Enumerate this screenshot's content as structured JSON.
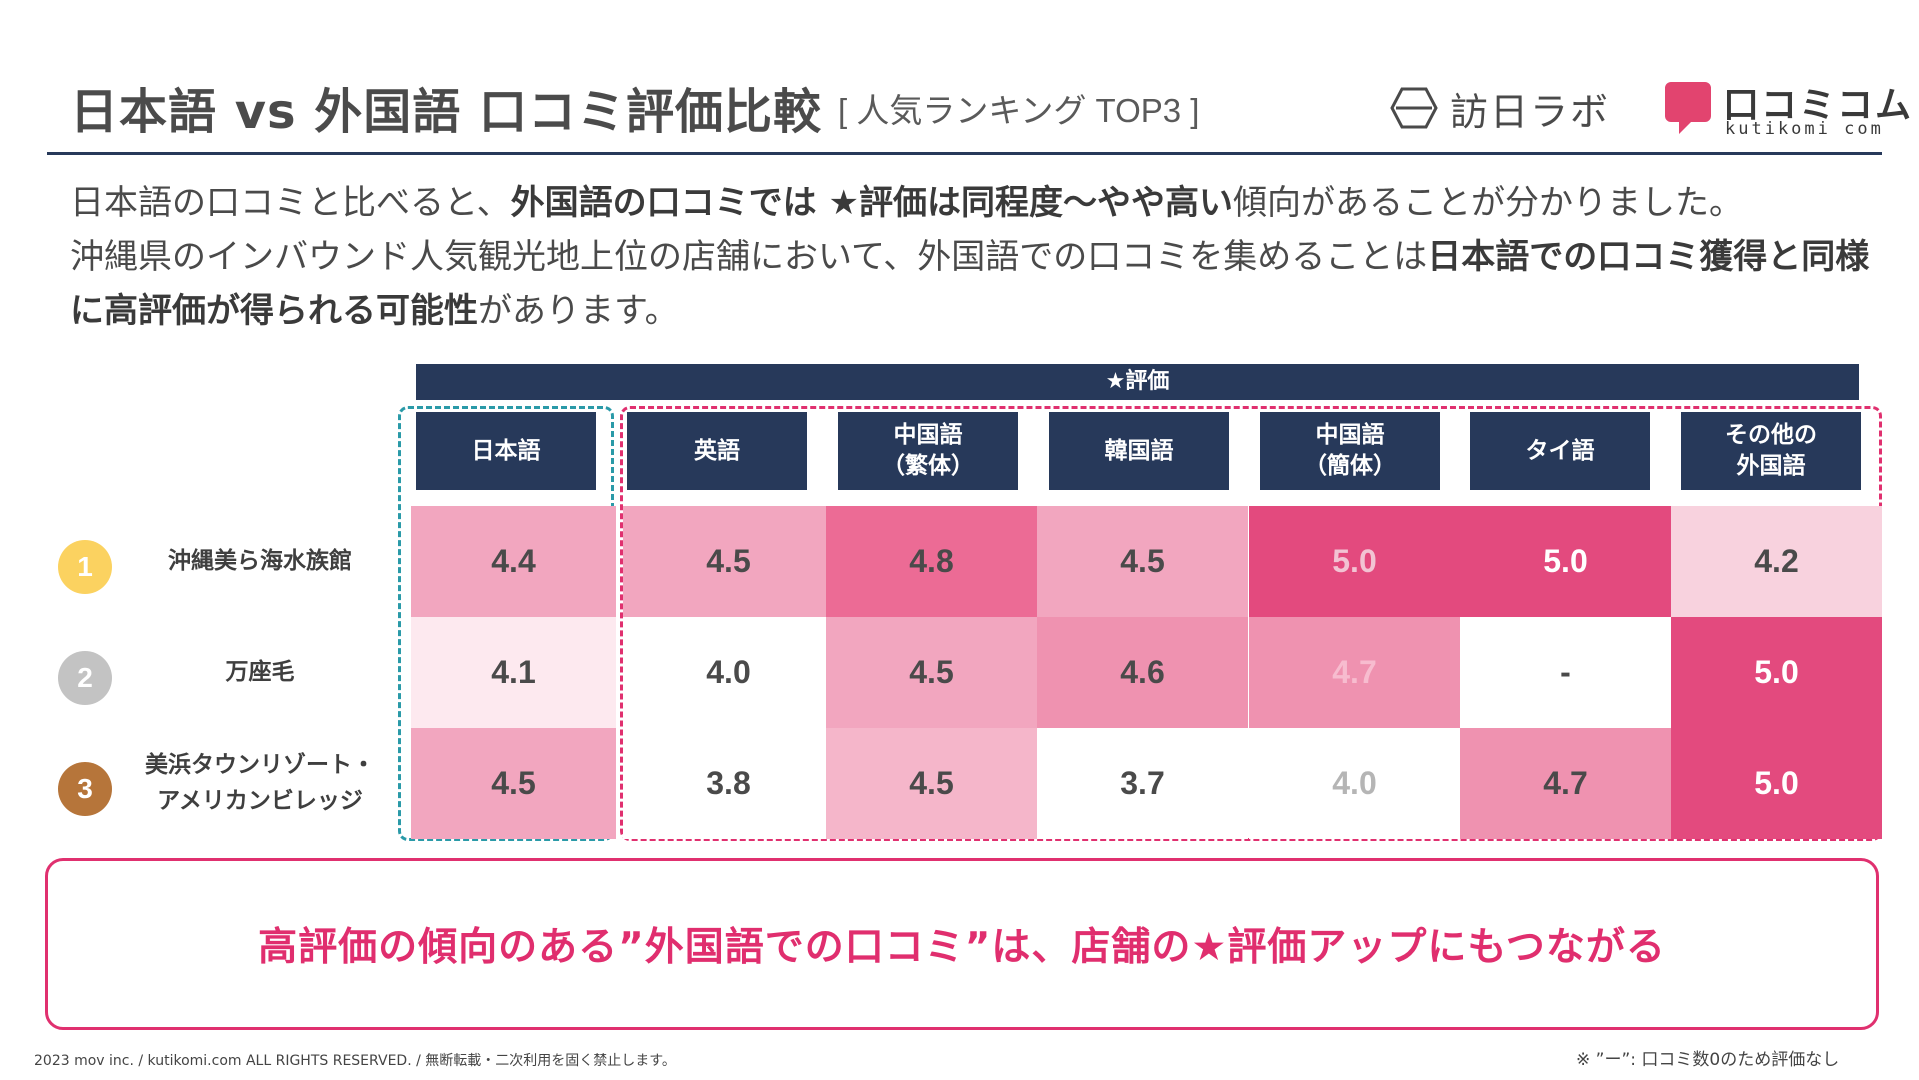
{
  "header": {
    "title": "日本語 vs 外国語 口コミ評価比較",
    "subtitle": "[ 人気ランキング TOP3 ]",
    "logo_houjin": "訪日ラボ",
    "logo_kuchikomi": "口コミコム",
    "logo_kuchikomi_url": "kutikomi com"
  },
  "intro": {
    "p1": "日本語の口コミと比べると、",
    "b1": "外国語の口コミでは ★評価は同程度〜やや高い",
    "p2": "傾向があることが分かりました。",
    "p3": "沖縄県のインバウンド人気観光地上位の店舗において、外国語での口コミを集めることは",
    "b2": "日本語での口コミ獲得と同様に高評価が得られる可能性",
    "p4": "があります。"
  },
  "table": {
    "group_header": "★評価",
    "columns": [
      {
        "line1": "日本語",
        "line2": ""
      },
      {
        "line1": "英語",
        "line2": ""
      },
      {
        "line1": "中国語",
        "line2": "（繁体）"
      },
      {
        "line1": "韓国語",
        "line2": ""
      },
      {
        "line1": "中国語",
        "line2": "（簡体）"
      },
      {
        "line1": "タイ語",
        "line2": ""
      },
      {
        "line1": "その他の",
        "line2": "外国語"
      }
    ],
    "rows": [
      {
        "rank": "1",
        "rank_color": "#fbd260",
        "name_line1": "沖縄美ら海水族館",
        "name_line2": "",
        "values": [
          "4.4",
          "4.5",
          "4.8",
          "4.5",
          "5.0",
          "5.0",
          "4.2"
        ],
        "bg": [
          "#f2a6bf",
          "#f2a6bf",
          "#ec6b95",
          "#f2a6bf",
          "#e34a7e",
          "#e34a7e",
          "#f8d2de"
        ],
        "fg": [
          "#4a4a4a",
          "#4a4a4a",
          "#4a4a4a",
          "#4a4a4a",
          "#f2c3d3",
          "#ffffff",
          "#4a4a4a"
        ]
      },
      {
        "rank": "2",
        "rank_color": "#c3c3c3",
        "name_line1": "万座毛",
        "name_line2": "",
        "values": [
          "4.1",
          "4.0",
          "4.5",
          "4.6",
          "4.7",
          "-",
          "5.0"
        ],
        "bg": [
          "#fde9ef",
          "#ffffff",
          "#f2a6bf",
          "#ef92b0",
          "#ef92b0",
          "#ffffff",
          "#e34a7e"
        ],
        "fg": [
          "#4a4a4a",
          "#4a4a4a",
          "#4a4a4a",
          "#4a4a4a",
          "#f7bccf",
          "#4a4a4a",
          "#ffffff"
        ]
      },
      {
        "rank": "3",
        "rank_color": "#b6753a",
        "name_line1": "美浜タウンリゾート・",
        "name_line2": "アメリカンビレッジ",
        "values": [
          "4.5",
          "3.8",
          "4.5",
          "3.7",
          "4.0",
          "4.7",
          "5.0"
        ],
        "bg": [
          "#f2a6bf",
          "#ffffff",
          "#f5b6ca",
          "#ffffff",
          "#ffffff",
          "#ef92b0",
          "#e34a7e"
        ],
        "fg": [
          "#4a4a4a",
          "#4a4a4a",
          "#4a4a4a",
          "#4a4a4a",
          "#b5b5b5",
          "#4a4a4a",
          "#ffffff"
        ]
      }
    ]
  },
  "conclusion": "高評価の傾向のある”外国語での口コミ”は、店舗の★評価アップにもつながる",
  "footer": "2023 mov inc. / kutikomi.com ALL RIGHTS RESERVED. / 無断転載・二次利用を固く禁止します。",
  "footnote": "※ ”ー”: 口コミ数0のため評価なし",
  "colors": {
    "navy": "#27395a",
    "accent_pink": "#e0306f",
    "teal": "#2a9aa8"
  }
}
